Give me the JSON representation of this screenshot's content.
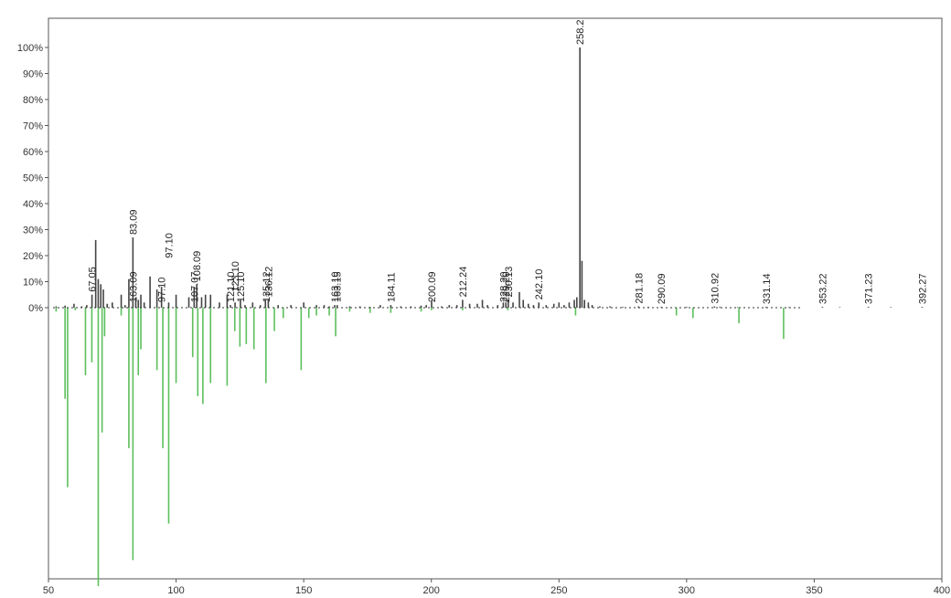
{
  "chart_data": {
    "type": "bar",
    "title": "",
    "xlabel": "",
    "ylabel": "",
    "xlim": [
      50,
      400
    ],
    "ylim": [
      -110,
      110
    ],
    "x_ticks": [
      50,
      100,
      150,
      200,
      250,
      300,
      350,
      400
    ],
    "y_ticks": [
      0,
      10,
      20,
      30,
      40,
      50,
      60,
      70,
      80,
      90,
      100
    ],
    "y_tick_labels": [
      "0%",
      "10%",
      "20%",
      "30%",
      "40%",
      "50%",
      "60%",
      "70%",
      "80%",
      "90%",
      "100%"
    ],
    "grid": false,
    "colors": {
      "measured": "#444444",
      "reference": "#5cbf5c",
      "axis": "#555555"
    },
    "series": [
      {
        "name": "",
        "color": "#444444",
        "x": [
          53,
          56.5,
          60,
          63,
          65,
          67.05,
          68.5,
          69.5,
          70.5,
          71.5,
          73,
          75,
          78.5,
          80,
          81.5,
          83.09,
          84.2,
          85.2,
          86.2,
          87.5,
          89.8,
          92.5,
          94.3,
          97.1,
          100,
          105,
          107.07,
          108.09,
          110,
          111.5,
          113.5,
          117,
          120,
          121.3,
          123.1,
          125.2,
          127,
          130,
          133,
          135,
          136.12,
          140,
          145,
          150,
          155,
          158,
          160,
          162.15,
          163.1,
          168,
          172,
          176,
          180,
          184.11,
          188,
          192,
          196,
          198,
          200.09,
          204,
          207,
          210,
          212.24,
          215,
          218,
          220,
          222,
          226,
          228.2,
          229.2,
          230.13,
          232,
          234.5,
          236,
          238,
          240,
          242.1,
          245,
          248,
          250,
          252,
          254,
          256,
          257,
          258.2,
          259,
          260,
          261.5,
          263,
          266,
          270,
          275,
          281.18,
          285,
          290.09,
          300,
          310.92,
          313,
          320,
          331.14,
          340,
          353.22,
          360,
          371.23,
          380,
          392.27
        ],
        "values": [
          0.5,
          0.8,
          1.5,
          0.5,
          1,
          5,
          26,
          11,
          9,
          7,
          1.5,
          2,
          5,
          1,
          11,
          27,
          4,
          3,
          5,
          2,
          12,
          7,
          8,
          2,
          5,
          4,
          8,
          9,
          4,
          5,
          5,
          2,
          5,
          1,
          2,
          3,
          1,
          2,
          1,
          3,
          3,
          1,
          1,
          2,
          1,
          1,
          0.5,
          1,
          1,
          0.5,
          0.5,
          0.3,
          1,
          1,
          0.5,
          0.5,
          0.8,
          1,
          3,
          0.5,
          1,
          1,
          3,
          1.5,
          1.5,
          3,
          1,
          1,
          2,
          2,
          3,
          2,
          6,
          3,
          1.5,
          1,
          2,
          1,
          1.5,
          2,
          1,
          2,
          3,
          4,
          100,
          18,
          3,
          2,
          1,
          0.5,
          0.5,
          0.3,
          0.5,
          0.3,
          0.3,
          0.3,
          0.5,
          0.3,
          0.2,
          0.3,
          0.2,
          0.3,
          0.2,
          0.3,
          0.2,
          0.3
        ]
      },
      {
        "name": "",
        "color": "#5cbf5c",
        "x": [
          53,
          56.5,
          57.5,
          60.5,
          64.5,
          67,
          69.5,
          71,
          72,
          78.5,
          81.5,
          83.09,
          85.2,
          86.2,
          92.5,
          94.8,
          97.1,
          100,
          106.5,
          108.5,
          110.5,
          113.5,
          120,
          123,
          125,
          127.5,
          130.5,
          135.2,
          138.5,
          142,
          149,
          152,
          155,
          160,
          162.5,
          168,
          176,
          184.11,
          196,
          200.09,
          212.24,
          230,
          256.5,
          296,
          302.5,
          320.5,
          338
        ],
        "values": [
          -1.5,
          -35,
          -69,
          -1,
          -26,
          -21,
          -107,
          -48,
          -11,
          -3,
          -54,
          -97,
          -26,
          -16,
          -24,
          -54,
          -83,
          -29,
          -19,
          -34,
          -37,
          -29,
          -30,
          -9,
          -15,
          -14,
          -16,
          -29,
          -9,
          -4,
          -24,
          -4,
          -3,
          -3,
          -11,
          -1.5,
          -2,
          -2,
          -1.5,
          -1,
          -1,
          -1,
          -3,
          -3,
          -4,
          -6,
          -12
        ]
      }
    ],
    "annotations": [
      {
        "text": "67.05",
        "x": 67.05,
        "y": 5
      },
      {
        "text": "83.09",
        "x": 83.09,
        "y": 27
      },
      {
        "text": "163.09",
        "x": 83.09,
        "y": 1
      },
      {
        "text": "97.10",
        "x": 97.1,
        "y": 18
      },
      {
        "text": "97.10",
        "x": 94.3,
        "y": 1
      },
      {
        "text": "107.07",
        "x": 107.07,
        "y": 1
      },
      {
        "text": "108.09",
        "x": 108.09,
        "y": 9
      },
      {
        "text": "121.10",
        "x": 121.3,
        "y": 1
      },
      {
        "text": "123.10",
        "x": 123.1,
        "y": 5
      },
      {
        "text": "125.10",
        "x": 125.2,
        "y": 1
      },
      {
        "text": "135.12",
        "x": 135.2,
        "y": 1
      },
      {
        "text": "136.12",
        "x": 136.12,
        "y": 3
      },
      {
        "text": "163.10",
        "x": 162.15,
        "y": 1
      },
      {
        "text": "163.15",
        "x": 163.1,
        "y": 1
      },
      {
        "text": "184.11",
        "x": 184.11,
        "y": 1
      },
      {
        "text": "200.09",
        "x": 200.09,
        "y": 1
      },
      {
        "text": "212.24",
        "x": 212.24,
        "y": 3
      },
      {
        "text": "228.20",
        "x": 228.2,
        "y": 1
      },
      {
        "text": "229.20",
        "x": 229.2,
        "y": 1
      },
      {
        "text": "230.13",
        "x": 230.13,
        "y": 3
      },
      {
        "text": "242.10",
        "x": 242.1,
        "y": 2
      },
      {
        "text": "258.2",
        "x": 258.2,
        "y": 100
      },
      {
        "text": "281.18",
        "x": 281.18,
        "y": 0.5
      },
      {
        "text": "290.09",
        "x": 290.09,
        "y": 0.3
      },
      {
        "text": "310.92",
        "x": 310.92,
        "y": 0.5
      },
      {
        "text": "331.14",
        "x": 331.14,
        "y": 0.3
      },
      {
        "text": "353.22",
        "x": 353.22,
        "y": 0.3
      },
      {
        "text": "371.23",
        "x": 371.23,
        "y": 0.3
      },
      {
        "text": "392.27",
        "x": 392.27,
        "y": 0.3
      }
    ]
  }
}
